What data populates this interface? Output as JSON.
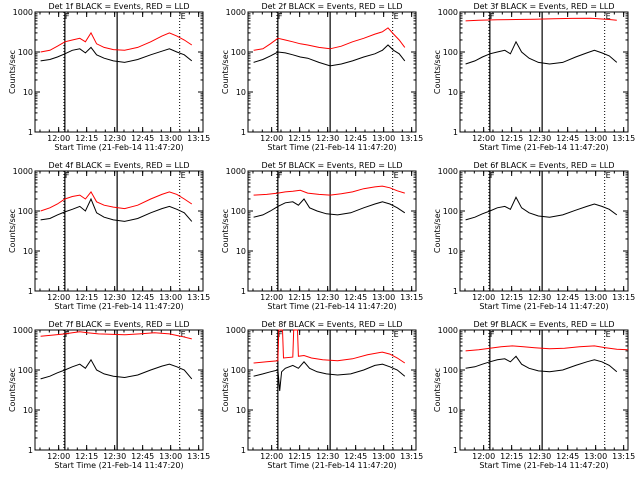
{
  "figure": {
    "x_tick_labels": [
      "12:00",
      "12:15",
      "12:30",
      "12:45",
      "13:00",
      "13:15"
    ],
    "y_tick_labels": [
      "1",
      "10",
      "100",
      "1000"
    ],
    "xlabel": "Start Time (21-Feb-14 11:47:20)",
    "ylabel": "Counts/sec",
    "marker_F": "F",
    "marker_E": "E",
    "colors": {
      "events": "#000000",
      "lld": "#ff0000"
    }
  },
  "chart_data": [
    {
      "type": "line",
      "title": "Det 1f BLACK = Events, RED = LLD",
      "xlabel": "Start Time (21-Feb-14 11:47:20)",
      "ylabel": "Counts/sec",
      "x_unit": "minutes after 11:47:20",
      "ylim": [
        1,
        1000
      ],
      "yscale": "log",
      "solid_vlines": [
        16,
        44
      ],
      "dotted_vlines": [
        15.5,
        77.5
      ],
      "series": [
        {
          "name": "Events",
          "color": "#000000",
          "x": [
            3,
            8,
            12,
            16,
            20,
            24,
            27,
            30,
            33,
            37,
            42,
            48,
            55,
            62,
            68,
            72,
            76,
            80,
            84
          ],
          "y": [
            60,
            65,
            75,
            90,
            110,
            120,
            95,
            130,
            85,
            70,
            60,
            55,
            65,
            85,
            105,
            120,
            100,
            85,
            60
          ]
        },
        {
          "name": "LLD",
          "color": "#ff0000",
          "x": [
            3,
            8,
            12,
            16,
            20,
            24,
            27,
            30,
            33,
            37,
            42,
            48,
            55,
            62,
            68,
            72,
            76,
            80,
            84
          ],
          "y": [
            100,
            110,
            140,
            180,
            200,
            220,
            180,
            300,
            160,
            130,
            115,
            110,
            130,
            180,
            250,
            300,
            250,
            200,
            150
          ]
        }
      ]
    },
    {
      "type": "line",
      "title": "Det 2f BLACK = Events, RED = LLD",
      "xlabel": "Start Time (21-Feb-14 11:47:20)",
      "ylabel": "Counts/sec",
      "x_unit": "minutes after 11:47:20",
      "ylim": [
        1,
        1000
      ],
      "yscale": "log",
      "solid_vlines": [
        16,
        44
      ],
      "dotted_vlines": [
        15.5,
        77.5
      ],
      "series": [
        {
          "name": "Events",
          "color": "#000000",
          "x": [
            3,
            8,
            12,
            16,
            20,
            24,
            28,
            32,
            38,
            44,
            50,
            56,
            62,
            68,
            72,
            75,
            78,
            81,
            84
          ],
          "y": [
            55,
            65,
            80,
            100,
            95,
            85,
            75,
            70,
            55,
            45,
            50,
            60,
            75,
            90,
            110,
            150,
            110,
            90,
            60
          ]
        },
        {
          "name": "LLD",
          "color": "#ff0000",
          "x": [
            3,
            8,
            12,
            16,
            20,
            24,
            28,
            32,
            38,
            44,
            50,
            56,
            62,
            68,
            72,
            75,
            78,
            81,
            84
          ],
          "y": [
            110,
            120,
            160,
            220,
            200,
            180,
            160,
            150,
            130,
            120,
            140,
            180,
            220,
            280,
            320,
            400,
            280,
            200,
            130
          ]
        }
      ]
    },
    {
      "type": "line",
      "title": "Det 3f BLACK = Events, RED = LLD",
      "xlabel": "Start Time (21-Feb-14 11:47:20)",
      "ylabel": "Counts/sec",
      "x_unit": "minutes after 11:47:20",
      "ylim": [
        1,
        1000
      ],
      "yscale": "log",
      "solid_vlines": [
        16,
        44
      ],
      "dotted_vlines": [
        15.5,
        77.5
      ],
      "series": [
        {
          "name": "Events",
          "color": "#000000",
          "x": [
            3,
            8,
            12,
            16,
            20,
            24,
            27,
            30,
            33,
            37,
            42,
            48,
            55,
            62,
            68,
            72,
            76,
            80,
            84
          ],
          "y": [
            50,
            60,
            75,
            90,
            100,
            110,
            90,
            180,
            100,
            70,
            55,
            50,
            55,
            75,
            95,
            110,
            95,
            80,
            55
          ]
        },
        {
          "name": "LLD",
          "color": "#ff0000",
          "x": [
            3,
            10,
            20,
            30,
            40,
            50,
            60,
            70,
            80,
            84
          ],
          "y": [
            600,
            620,
            640,
            650,
            660,
            680,
            690,
            700,
            650,
            620
          ]
        }
      ]
    },
    {
      "type": "line",
      "title": "Det 4f BLACK = Events, RED = LLD",
      "xlabel": "Start Time (21-Feb-14 11:47:20)",
      "ylabel": "Counts/sec",
      "x_unit": "minutes after 11:47:20",
      "ylim": [
        1,
        1000
      ],
      "yscale": "log",
      "solid_vlines": [
        16,
        44
      ],
      "dotted_vlines": [
        15.5,
        77.5
      ],
      "series": [
        {
          "name": "Events",
          "color": "#000000",
          "x": [
            3,
            8,
            12,
            16,
            20,
            24,
            27,
            30,
            33,
            37,
            42,
            48,
            55,
            62,
            68,
            72,
            76,
            80,
            84
          ],
          "y": [
            60,
            65,
            80,
            95,
            110,
            130,
            100,
            200,
            90,
            70,
            60,
            55,
            65,
            90,
            115,
            130,
            110,
            90,
            55
          ]
        },
        {
          "name": "LLD",
          "color": "#ff0000",
          "x": [
            3,
            8,
            12,
            16,
            20,
            24,
            27,
            30,
            33,
            37,
            42,
            48,
            55,
            62,
            68,
            72,
            76,
            80,
            84
          ],
          "y": [
            100,
            120,
            150,
            200,
            230,
            250,
            200,
            300,
            170,
            140,
            125,
            115,
            140,
            200,
            260,
            300,
            260,
            200,
            150
          ]
        }
      ]
    },
    {
      "type": "line",
      "title": "Det 5f BLACK = Events, RED = LLD",
      "xlabel": "Start Time (21-Feb-14 11:47:20)",
      "ylabel": "Counts/sec",
      "x_unit": "minutes after 11:47:20",
      "ylim": [
        1,
        1000
      ],
      "yscale": "log",
      "solid_vlines": [
        16,
        44
      ],
      "dotted_vlines": [
        15.5,
        77.5
      ],
      "series": [
        {
          "name": "Events",
          "color": "#000000",
          "x": [
            3,
            8,
            12,
            16,
            20,
            24,
            27,
            30,
            33,
            37,
            42,
            48,
            55,
            62,
            68,
            72,
            76,
            80,
            84
          ],
          "y": [
            70,
            80,
            100,
            130,
            160,
            170,
            140,
            200,
            120,
            100,
            85,
            80,
            90,
            120,
            150,
            170,
            150,
            120,
            90
          ]
        },
        {
          "name": "LLD",
          "color": "#ff0000",
          "x": [
            3,
            10,
            16,
            20,
            24,
            28,
            32,
            38,
            44,
            50,
            56,
            62,
            68,
            72,
            76,
            80,
            84
          ],
          "y": [
            250,
            260,
            280,
            300,
            310,
            330,
            280,
            260,
            250,
            270,
            300,
            360,
            400,
            420,
            380,
            320,
            280
          ]
        }
      ]
    },
    {
      "type": "line",
      "title": "Det 6f BLACK = Events, RED = LLD",
      "xlabel": "Start Time (21-Feb-14 11:47:20)",
      "ylabel": "Counts/sec",
      "x_unit": "minutes after 11:47:20",
      "ylim": [
        1,
        1000
      ],
      "yscale": "log",
      "solid_vlines": [
        16,
        44
      ],
      "dotted_vlines": [
        15.5,
        77.5
      ],
      "series": [
        {
          "name": "Events",
          "color": "#000000",
          "x": [
            3,
            8,
            12,
            16,
            20,
            24,
            27,
            30,
            33,
            37,
            42,
            48,
            55,
            62,
            68,
            72,
            76,
            80,
            84
          ],
          "y": [
            60,
            70,
            85,
            100,
            120,
            130,
            110,
            220,
            120,
            90,
            75,
            70,
            80,
            105,
            130,
            150,
            130,
            110,
            80
          ]
        }
      ]
    },
    {
      "type": "line",
      "title": "Det 7f BLACK = Events, RED = LLD",
      "xlabel": "Start Time (21-Feb-14 11:47:20)",
      "ylabel": "Counts/sec",
      "x_unit": "minutes after 11:47:20",
      "ylim": [
        1,
        1000
      ],
      "yscale": "log",
      "solid_vlines": [
        16,
        44
      ],
      "dotted_vlines": [
        15.5,
        77.5
      ],
      "series": [
        {
          "name": "Events",
          "color": "#000000",
          "x": [
            3,
            8,
            12,
            16,
            20,
            24,
            27,
            30,
            33,
            37,
            42,
            48,
            55,
            62,
            68,
            72,
            76,
            80,
            84
          ],
          "y": [
            60,
            70,
            85,
            100,
            120,
            140,
            110,
            180,
            100,
            80,
            70,
            65,
            75,
            100,
            125,
            140,
            120,
            100,
            60
          ]
        },
        {
          "name": "LLD",
          "color": "#ff0000",
          "x": [
            3,
            10,
            16,
            20,
            24,
            28,
            34,
            40,
            48,
            56,
            64,
            72,
            78,
            84
          ],
          "y": [
            700,
            750,
            800,
            850,
            900,
            850,
            800,
            780,
            760,
            800,
            850,
            800,
            700,
            600
          ]
        }
      ]
    },
    {
      "type": "line",
      "title": "Det 8f BLACK = Events, RED = LLD",
      "xlabel": "Start Time (21-Feb-14 11:47:20)",
      "ylabel": "Counts/sec",
      "x_unit": "minutes after 11:47:20",
      "ylim": [
        1,
        1000
      ],
      "yscale": "log",
      "solid_vlines": [
        16,
        44
      ],
      "dotted_vlines": [
        15.5,
        77.5
      ],
      "series": [
        {
          "name": "Events",
          "color": "#000000",
          "x": [
            3,
            8,
            12,
            16,
            17,
            18,
            20,
            24,
            27,
            30,
            33,
            37,
            42,
            48,
            55,
            62,
            68,
            72,
            76,
            80,
            84
          ],
          "y": [
            70,
            80,
            90,
            100,
            30,
            90,
            110,
            130,
            110,
            160,
            110,
            90,
            80,
            75,
            80,
            100,
            130,
            140,
            120,
            100,
            70
          ]
        },
        {
          "name": "LLD",
          "color": "#ff0000",
          "x": [
            3,
            10,
            16,
            16.5,
            18.5,
            19,
            24,
            24.5,
            26.5,
            27,
            30,
            34,
            40,
            48,
            56,
            64,
            72,
            76,
            80,
            84
          ],
          "y": [
            150,
            160,
            170,
            1000,
            1000,
            200,
            210,
            1000,
            1000,
            220,
            230,
            200,
            180,
            170,
            190,
            240,
            280,
            250,
            200,
            150
          ]
        }
      ]
    },
    {
      "type": "line",
      "title": "Det 9f BLACK = Events, RED = LLD",
      "xlabel": "Start Time (21-Feb-14 11:47:20)",
      "ylabel": "Counts/sec",
      "x_unit": "minutes after 11:47:20",
      "ylim": [
        1,
        1000
      ],
      "yscale": "log",
      "solid_vlines": [
        16,
        44
      ],
      "dotted_vlines": [
        15.5,
        77.5
      ],
      "series": [
        {
          "name": "Events",
          "color": "#000000",
          "x": [
            3,
            8,
            12,
            16,
            20,
            24,
            27,
            30,
            33,
            37,
            42,
            48,
            55,
            62,
            68,
            72,
            76,
            80,
            84
          ],
          "y": [
            110,
            120,
            140,
            160,
            180,
            190,
            160,
            220,
            140,
            110,
            95,
            90,
            100,
            130,
            160,
            180,
            160,
            130,
            90
          ]
        },
        {
          "name": "LLD",
          "color": "#ff0000",
          "x": [
            3,
            10,
            16,
            22,
            28,
            34,
            40,
            48,
            56,
            64,
            72,
            78,
            84,
            90
          ],
          "y": [
            300,
            320,
            350,
            380,
            400,
            380,
            360,
            340,
            350,
            380,
            400,
            360,
            330,
            320
          ]
        }
      ]
    }
  ]
}
